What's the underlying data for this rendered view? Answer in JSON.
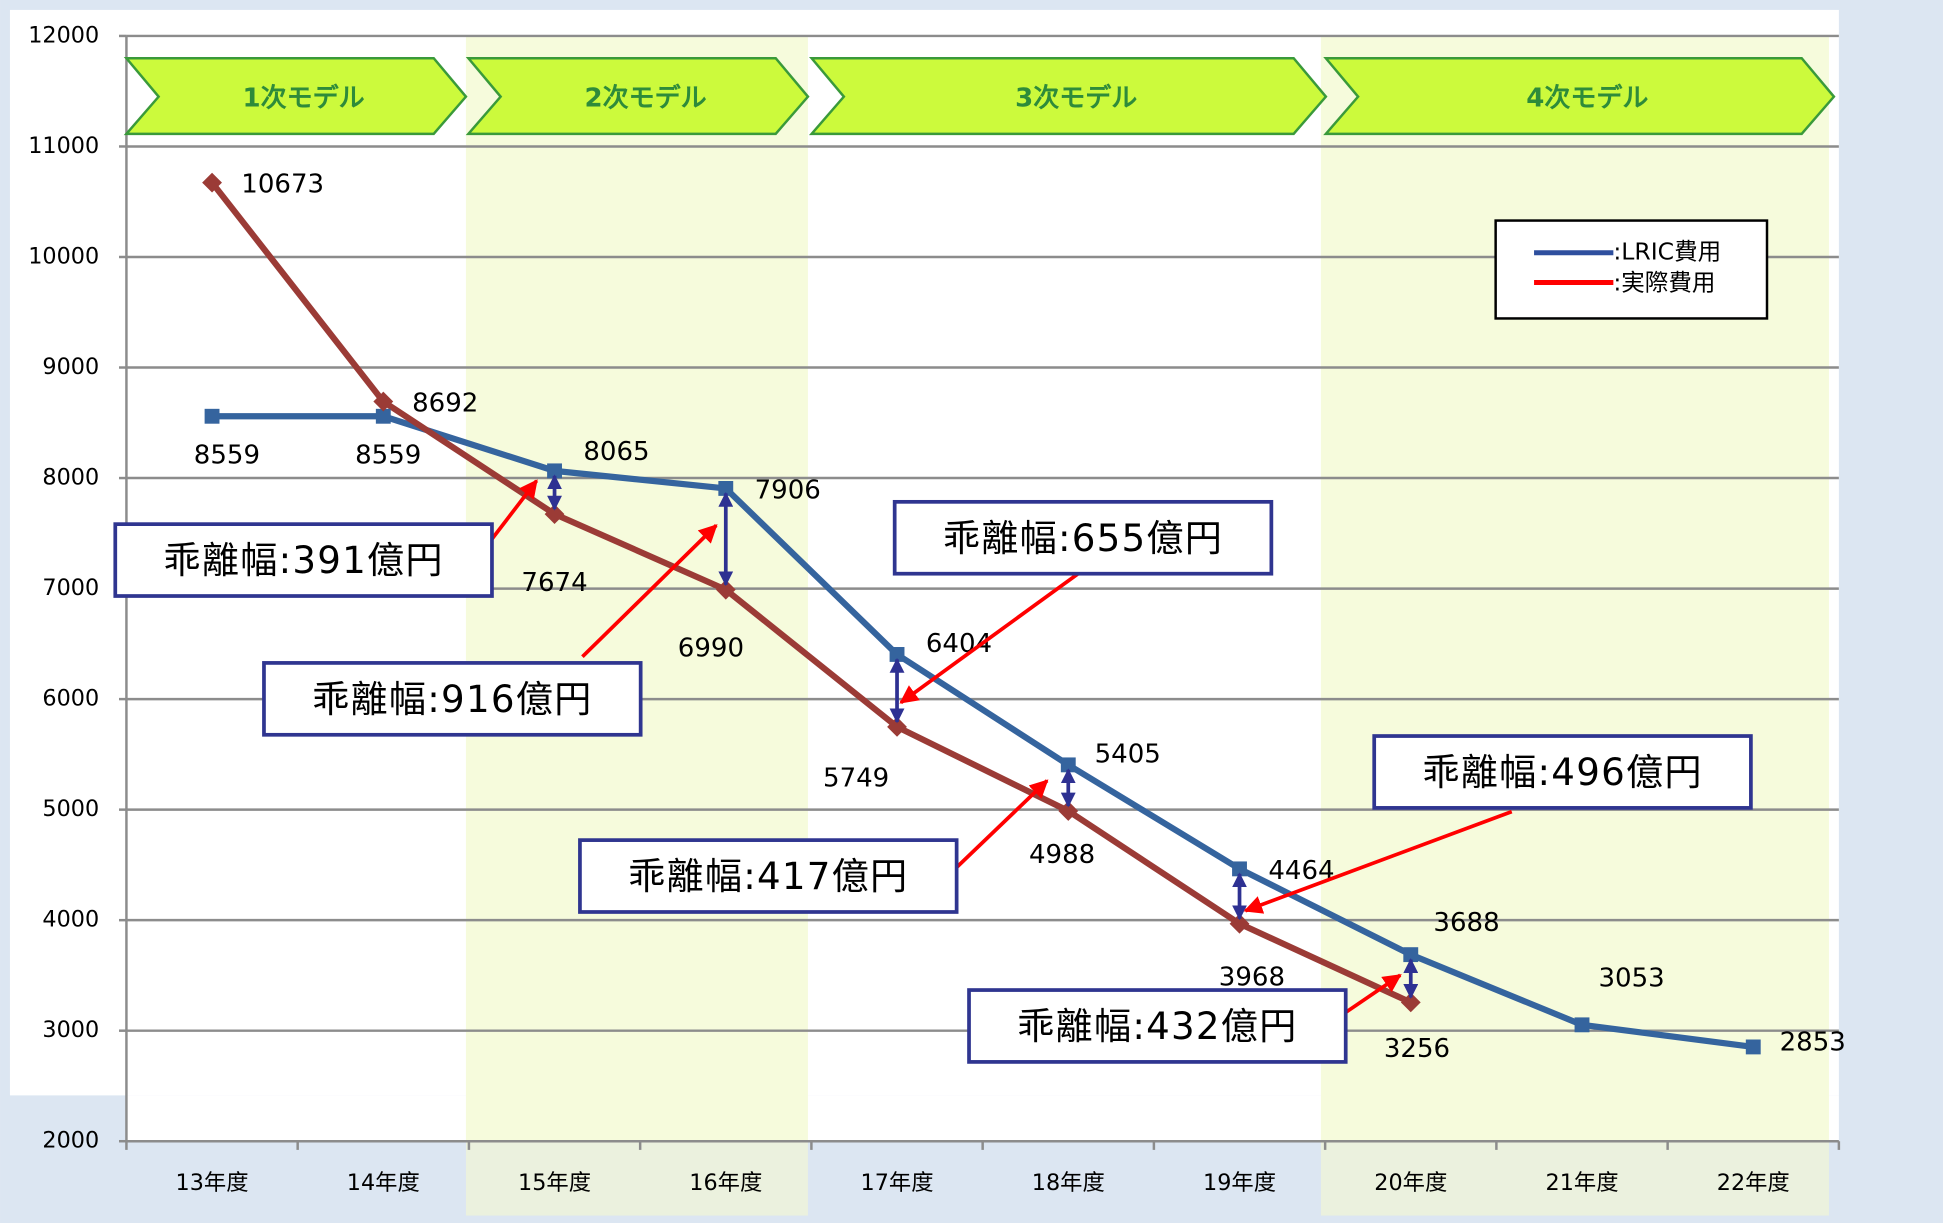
{
  "chart_data": {
    "type": "line",
    "categories": [
      "13年度",
      "14年度",
      "15年度",
      "16年度",
      "17年度",
      "18年度",
      "19年度",
      "20年度",
      "21年度",
      "22年度"
    ],
    "series": [
      {
        "name": ":LRIC費用",
        "color": "#35649e",
        "values": [
          8559,
          8559,
          8065,
          7906,
          6404,
          5405,
          4464,
          3688,
          3053,
          2853
        ]
      },
      {
        "name": ":実際費用",
        "color": "#9b3b36",
        "values": [
          10673,
          8692,
          7674,
          6990,
          5749,
          4988,
          3968,
          3256,
          null,
          null
        ]
      }
    ],
    "legend_colors": [
      "#2e4f9e",
      "#ff0000"
    ],
    "ylim": [
      2000,
      12000
    ],
    "yticks": [
      2000,
      3000,
      4000,
      5000,
      6000,
      7000,
      8000,
      9000,
      10000,
      11000,
      12000
    ],
    "grid": true,
    "phases": [
      "1次モデル",
      "2次モデル",
      "3次モデル",
      "4次モデル"
    ],
    "annotations": [
      "乖離幅:391億円",
      "乖離幅:916億円",
      "乖離幅:655億円",
      "乖離幅:417億円",
      "乖離幅:496億円",
      "乖離幅:432億円"
    ]
  }
}
